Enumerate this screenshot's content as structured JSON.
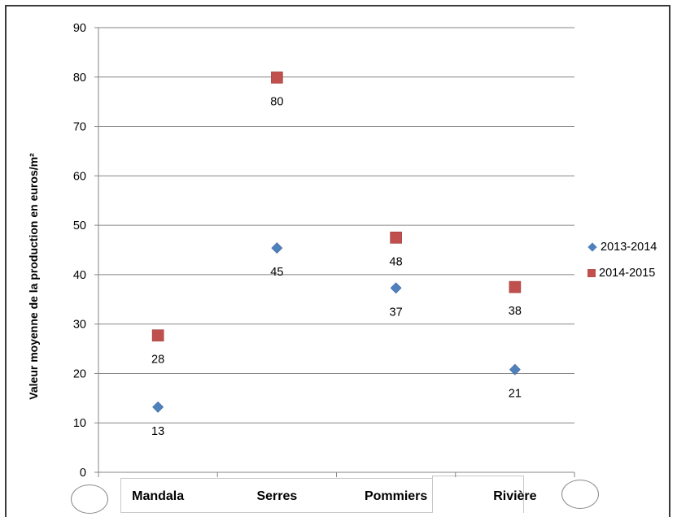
{
  "chart_data": {
    "type": "scatter",
    "title": "",
    "xlabel": "",
    "ylabel": "Valeur moyenne de la production en euros/m²",
    "categories": [
      "Mandala",
      "Serres",
      "Pommiers",
      "Rivière"
    ],
    "series": [
      {
        "name": "2013-2014",
        "marker": "diamond",
        "color": "#4f81bd",
        "values": [
          13,
          45,
          37,
          21
        ]
      },
      {
        "name": "2014-2015",
        "marker": "square",
        "color": "#c0504d",
        "values": [
          28,
          80,
          48,
          38
        ]
      }
    ],
    "plotted_values": {
      "2013-2014": [
        13.2,
        45.4,
        37.3,
        20.8
      ],
      "2014-2015": [
        27.7,
        79.9,
        47.5,
        37.5
      ]
    },
    "ylim": [
      0,
      90
    ],
    "yticks": [
      "0",
      "10",
      "20",
      "30",
      "40",
      "50",
      "60",
      "70",
      "80",
      "90"
    ],
    "grid": true,
    "legend_position": "right"
  }
}
